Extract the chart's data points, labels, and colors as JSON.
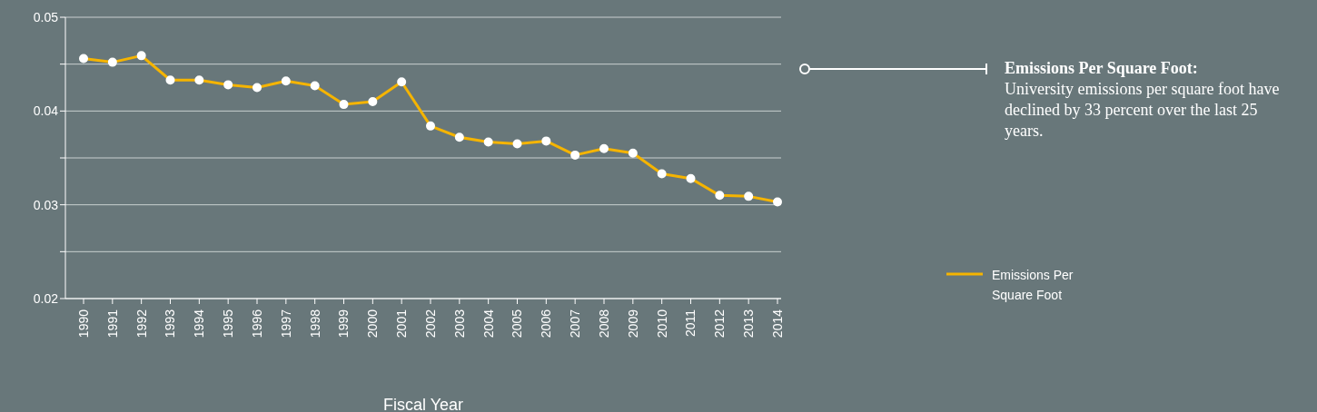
{
  "chart_data": {
    "type": "line",
    "xlabel": "Fiscal Year",
    "categories": [
      "1990",
      "1991",
      "1992",
      "1993",
      "1994",
      "1995",
      "1996",
      "1997",
      "1998",
      "1999",
      "2000",
      "2001",
      "2002",
      "2003",
      "2004",
      "2005",
      "2006",
      "2007",
      "2008",
      "2009",
      "2010",
      "2011",
      "2012",
      "2013",
      "2014"
    ],
    "series": [
      {
        "name": "Emissions Per Square Foot",
        "color": "#f5b400",
        "values": [
          0.0456,
          0.0452,
          0.0459,
          0.0433,
          0.0433,
          0.0428,
          0.0425,
          0.0432,
          0.0427,
          0.0407,
          0.041,
          0.0431,
          0.0384,
          0.0372,
          0.0367,
          0.0365,
          0.0368,
          0.0353,
          0.036,
          0.0355,
          0.0333,
          0.0328,
          0.031,
          0.0309,
          0.0303
        ]
      }
    ],
    "ylim": [
      0.02,
      0.05
    ],
    "yticks": [
      0.02,
      {
        "value": 0.025,
        "label": null
      },
      0.03,
      {
        "value": 0.035,
        "label": null
      },
      0.04,
      {
        "value": 0.045,
        "label": null
      },
      0.05
    ],
    "grid": "y",
    "legend": "right",
    "marker": "circle",
    "line_style": "solid",
    "annotations": [
      "Emissions Per Square Foot:",
      "University emissions per square foot have declined by 33 percent over the last 25 years."
    ]
  }
}
